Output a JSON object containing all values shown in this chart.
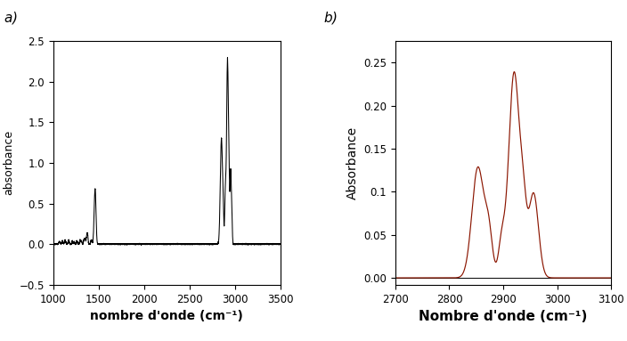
{
  "panel_a": {
    "xlabel": "nombre d'onde (cm⁻¹)",
    "ylabel": "absorbance",
    "xlim": [
      1000,
      3500
    ],
    "ylim": [
      -0.5,
      2.5
    ],
    "yticks": [
      -0.5,
      0.0,
      0.5,
      1.0,
      1.5,
      2.0,
      2.5
    ],
    "xticks": [
      1000,
      1500,
      2000,
      2500,
      3000,
      3500
    ]
  },
  "panel_b": {
    "xlabel": "Nombre d'onde (cm⁻¹)",
    "ylabel": "Absorbance",
    "xlim": [
      2700,
      3100
    ],
    "ylim": [
      -0.008,
      0.275
    ],
    "yticks": [
      0.0,
      0.05,
      0.1,
      0.15,
      0.2,
      0.25
    ],
    "ytick_labels": [
      "0.00",
      "0.05",
      "0.1",
      "0.15",
      "0.20",
      "0.25"
    ],
    "xticks": [
      2700,
      2800,
      2900,
      3000,
      3100
    ],
    "line_color": "#8B1500",
    "line_color2": "#000000"
  },
  "background_color": "#ffffff",
  "tick_fontsize": 8.5,
  "xlabel_a_fontsize": 10,
  "ylabel_a_fontsize": 9,
  "xlabel_b_fontsize": 11,
  "ylabel_b_fontsize": 10
}
